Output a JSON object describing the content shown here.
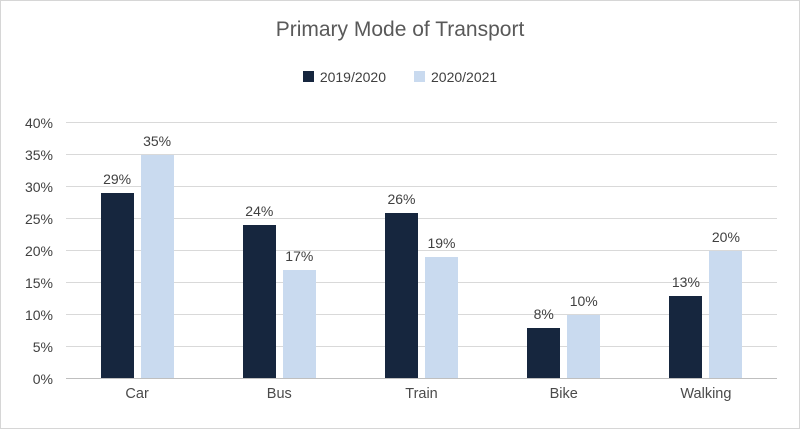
{
  "chart_title": "Primary Mode of Transport",
  "legend": [
    {
      "label": "2019/2020",
      "color": "#16263e"
    },
    {
      "label": "2020/2021",
      "color": "#c9daef"
    }
  ],
  "colors": {
    "gridline": "#d9d9d9",
    "axis_line": "#bfbfbf",
    "title_text": "#595959",
    "label_text": "#404040",
    "frame_border": "#d6d6d6"
  },
  "chart_data": {
    "type": "bar",
    "title": "Primary Mode of Transport",
    "categories": [
      "Car",
      "Bus",
      "Train",
      "Bike",
      "Walking"
    ],
    "series": [
      {
        "name": "2019/2020",
        "color": "#16263e",
        "values": [
          29,
          24,
          26,
          8,
          13
        ],
        "data_labels": [
          "29%",
          "24%",
          "26%",
          "8%",
          "13%"
        ]
      },
      {
        "name": "2020/2021",
        "color": "#c9daef",
        "values": [
          35,
          17,
          19,
          10,
          20
        ],
        "data_labels": [
          "35%",
          "17%",
          "19%",
          "10%",
          "20%"
        ]
      }
    ],
    "xlabel": "",
    "ylabel": "",
    "ylim": [
      0,
      40
    ],
    "yticks": [
      0,
      5,
      10,
      15,
      20,
      25,
      30,
      35,
      40
    ],
    "ytick_suffix": "%",
    "grid": true,
    "legend_position": "top"
  }
}
